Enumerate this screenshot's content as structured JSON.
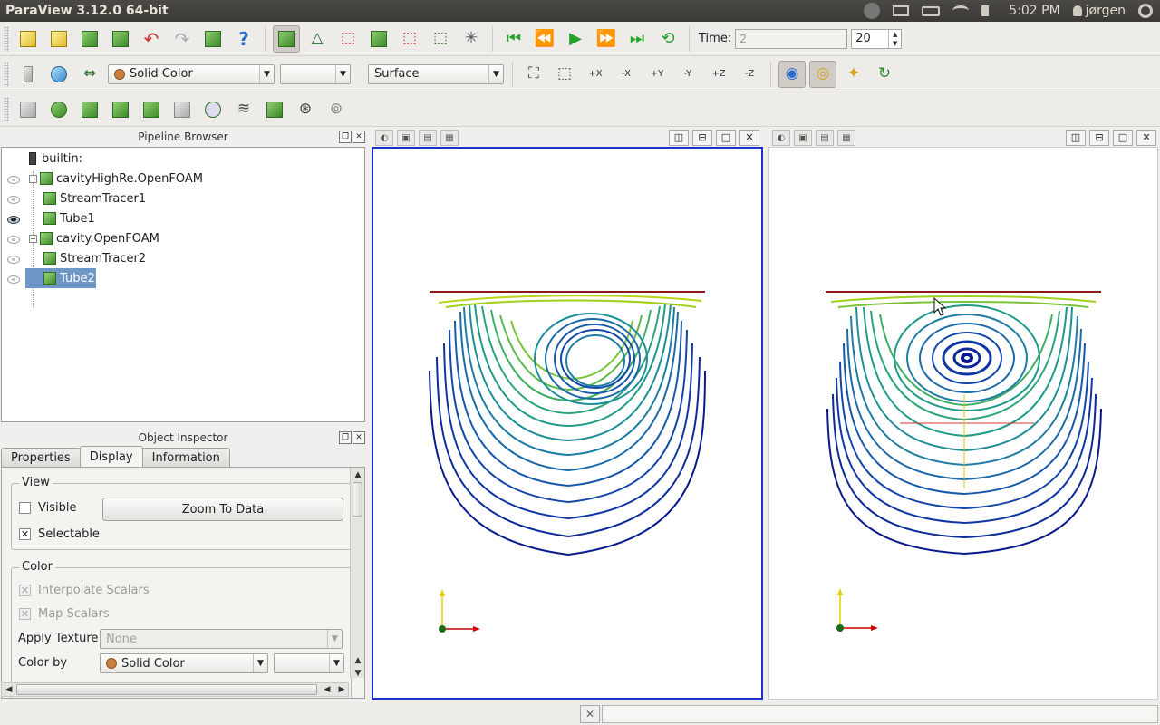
{
  "window": {
    "title": "ParaView 3.12.0 64-bit"
  },
  "tray": {
    "time": "5:02 PM",
    "user": "jørgen"
  },
  "toolbar": {
    "time_label": "Time:",
    "time_value": "2",
    "timestep_value": "20",
    "color_by_value": "Solid Color",
    "component_value": "",
    "representation_value": "Surface",
    "axis_buttons": [
      "+X",
      "-X",
      "+Y",
      "-Y",
      "+Z",
      "-Z"
    ]
  },
  "pipeline": {
    "title": "Pipeline Browser",
    "items": [
      {
        "label": "builtin:",
        "type": "server"
      },
      {
        "label": "cavityHighRe.OpenFOAM",
        "visible": false
      },
      {
        "label": "StreamTracer1",
        "visible": false
      },
      {
        "label": "Tube1",
        "visible": true
      },
      {
        "label": "cavity.OpenFOAM",
        "visible": false
      },
      {
        "label": "StreamTracer2",
        "visible": false
      },
      {
        "label": "Tube2",
        "visible": false,
        "selected": true
      }
    ]
  },
  "inspector": {
    "title": "Object Inspector",
    "tabs": [
      "Properties",
      "Display",
      "Information"
    ],
    "active_tab": "Display",
    "view_group": {
      "title": "View",
      "visible_label": "Visible",
      "visible_checked": false,
      "zoom_button": "Zoom To Data",
      "selectable_label": "Selectable",
      "selectable_checked": true
    },
    "color_group": {
      "title": "Color",
      "interpolate_label": "Interpolate Scalars",
      "map_scalars_label": "Map Scalars",
      "apply_texture_label": "Apply Texture",
      "apply_texture_value": "None",
      "color_by_label": "Color by",
      "color_by_value": "Solid Color"
    }
  },
  "colors": {
    "active_view_border": "#1c2fd0",
    "lid_line": "#8b1a1a",
    "stream_low": "#0a1a8c",
    "stream_mid": "#1f9a88",
    "stream_high": "#9fcf1e"
  }
}
